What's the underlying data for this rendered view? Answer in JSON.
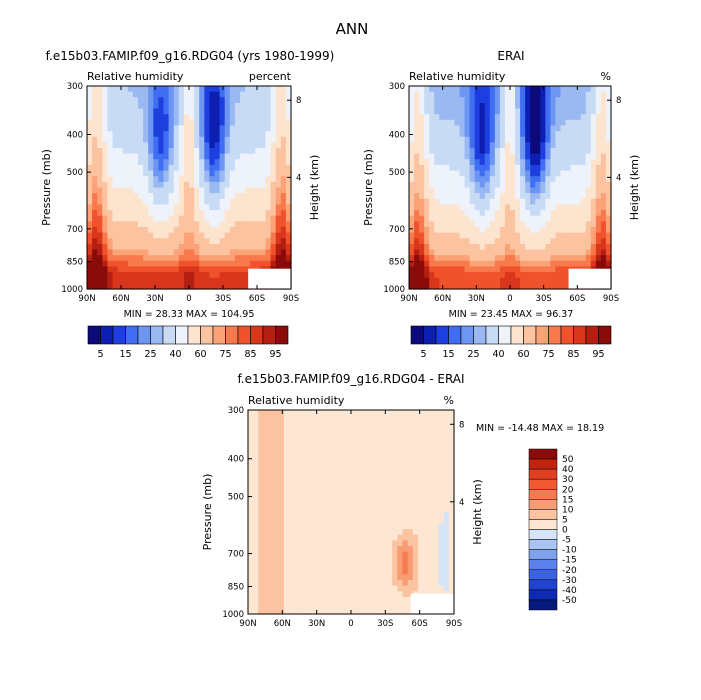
{
  "page_title": "ANN",
  "chart_data": [
    {
      "type": "heatmap",
      "id": "model",
      "title": "f.e15b03.FAMIP.f09_g16.RDG04 (yrs 1980-1999)",
      "subtitle_left": "Relative humidity",
      "subtitle_right": "percent",
      "ylabel": "Pressure (mb)",
      "ylabel_right": "Height (km)",
      "x_ticks": [
        "90N",
        "60N",
        "30N",
        "0",
        "30S",
        "60S",
        "90S"
      ],
      "y_ticks": [
        "300",
        "400",
        "500",
        "700",
        "850",
        "1000"
      ],
      "y_right_ticks": [
        "8",
        "4"
      ],
      "xlim": [
        90,
        -90
      ],
      "ylim": [
        1000,
        300
      ],
      "stats": "MIN =   28.33   MAX =  104.95",
      "min": 28.33,
      "max": 104.95
    },
    {
      "type": "heatmap",
      "id": "obs",
      "title": "ERAI",
      "subtitle_left": "Relative humidity",
      "subtitle_right": "%",
      "ylabel": "Pressure (mb)",
      "ylabel_right": "Height (km)",
      "x_ticks": [
        "90N",
        "60N",
        "30N",
        "0",
        "30S",
        "60S",
        "90S"
      ],
      "y_ticks": [
        "300",
        "400",
        "500",
        "700",
        "850",
        "1000"
      ],
      "y_right_ticks": [
        "8",
        "4"
      ],
      "xlim": [
        90,
        -90
      ],
      "ylim": [
        1000,
        300
      ],
      "stats": "MIN =   23.45   MAX =   96.37",
      "min": 23.45,
      "max": 96.37
    },
    {
      "type": "heatmap",
      "id": "diff",
      "title": "f.e15b03.FAMIP.f09_g16.RDG04 - ERAI",
      "subtitle_left": "Relative humidity",
      "subtitle_right": "%",
      "ylabel": "Pressure (mb)",
      "ylabel_right": "Height (km)",
      "x_ticks": [
        "90N",
        "60N",
        "30N",
        "0",
        "30S",
        "60S",
        "90S"
      ],
      "y_ticks": [
        "300",
        "400",
        "500",
        "700",
        "850",
        "1000"
      ],
      "y_right_ticks": [
        "8",
        "4"
      ],
      "xlim": [
        90,
        -90
      ],
      "ylim": [
        1000,
        300
      ],
      "stats": "MIN = -14.48   MAX =   18.19",
      "min": -14.48,
      "max": 18.19
    }
  ],
  "colorbar_abs": {
    "labels": [
      "5",
      "15",
      "25",
      "40",
      "60",
      "75",
      "85",
      "95"
    ],
    "colors": [
      "#0a0a7a",
      "#0c1fb0",
      "#1e3fe0",
      "#3f6ef2",
      "#6d96f2",
      "#9ab8f2",
      "#c8dbf5",
      "#eef3fb",
      "#fde4cf",
      "#fcc3a0",
      "#fba276",
      "#f7794c",
      "#f0532b",
      "#d9361c",
      "#b51f12",
      "#8a0c0a"
    ]
  },
  "colorbar_diff": {
    "labels": [
      "50",
      "40",
      "30",
      "20",
      "15",
      "10",
      "5",
      "0",
      "-5",
      "-10",
      "-15",
      "-20",
      "-30",
      "-40",
      "-50"
    ],
    "colors": [
      "#8a0c0a",
      "#c0240f",
      "#e04020",
      "#f05a30",
      "#f57a4e",
      "#f89d73",
      "#fbc3a1",
      "#fde7d2",
      "#d5e4f7",
      "#a9c4f2",
      "#7ea2ee",
      "#5a82ea",
      "#3a63e2",
      "#1f45d0",
      "#0d2ab0",
      "#061a7e"
    ]
  }
}
